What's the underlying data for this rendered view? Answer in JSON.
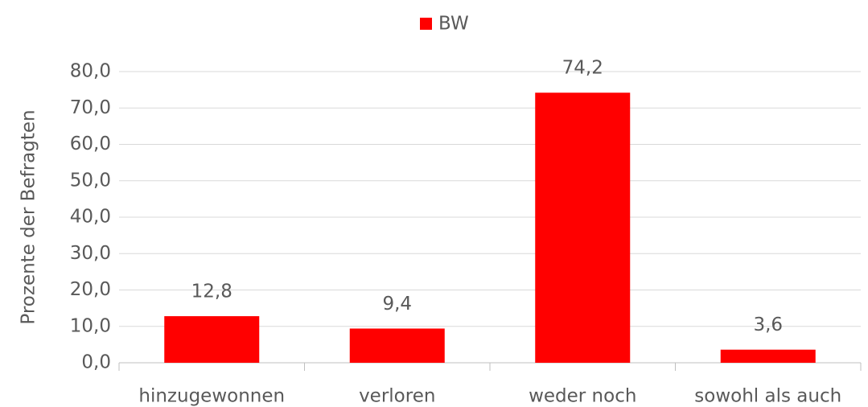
{
  "chart_data": {
    "type": "bar",
    "categories": [
      "hinzugewonnen",
      "verloren",
      "weder noch",
      "sowohl als auch"
    ],
    "series": [
      {
        "name": "BW",
        "color": "#ff0000",
        "values": [
          12.8,
          9.4,
          74.2,
          3.6
        ],
        "value_labels": [
          "12,8",
          "9,4",
          "74,2",
          "3,6"
        ]
      }
    ],
    "y_label": "Prozente der Befragten",
    "ylim": [
      0,
      80
    ],
    "yticks": [
      {
        "value": 0,
        "label": "0,0"
      },
      {
        "value": 10,
        "label": "10,0"
      },
      {
        "value": 20,
        "label": "20,0"
      },
      {
        "value": 30,
        "label": "30,0"
      },
      {
        "value": 40,
        "label": "40,0"
      },
      {
        "value": 50,
        "label": "50,0"
      },
      {
        "value": 60,
        "label": "60,0"
      },
      {
        "value": 70,
        "label": "70,0"
      },
      {
        "value": 80,
        "label": "80,0"
      }
    ],
    "grid": true,
    "legend": "top"
  }
}
